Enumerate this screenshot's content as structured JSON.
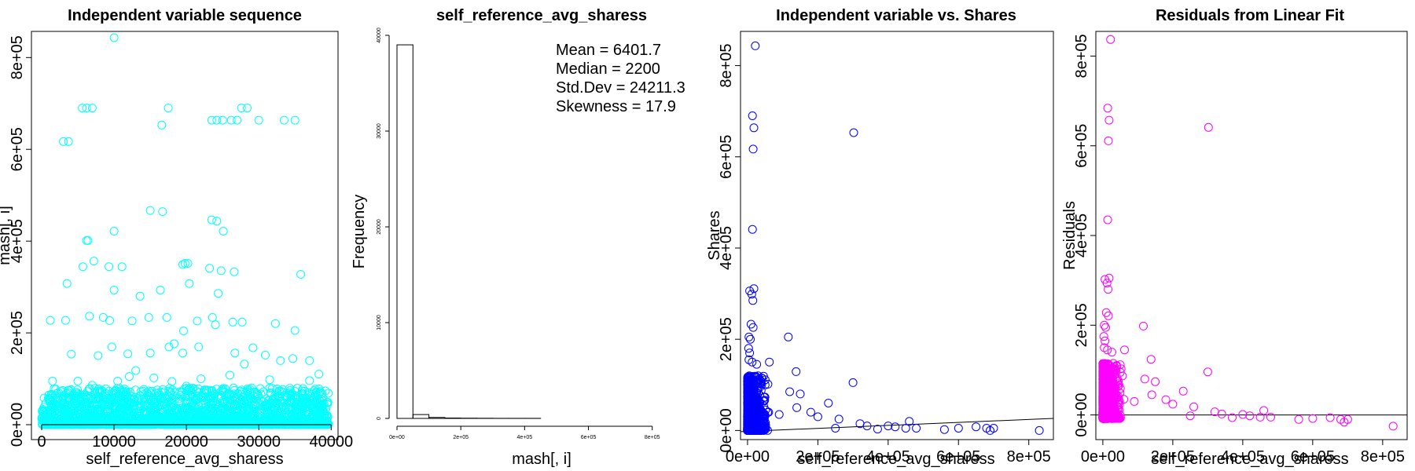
{
  "chart_data": [
    {
      "type": "scatter",
      "title": "Independent variable sequence",
      "xlabel": "self_reference_avg_sharess",
      "ylabel": "mash[, i]",
      "xlim": [
        0,
        39644
      ],
      "ylim": [
        0,
        843300
      ],
      "xticks": [
        0,
        10000,
        20000,
        30000,
        40000
      ],
      "xtick_labels": [
        "0",
        "10000",
        "20000",
        "30000",
        "40000"
      ],
      "yticks": [
        0,
        200000,
        400000,
        600000,
        800000
      ],
      "ytick_labels": [
        "0e+00",
        "2e+05",
        "4e+05",
        "6e+05",
        "8e+05"
      ],
      "marker": "open circle",
      "color": "#00FFFF",
      "points": [
        [
          10000,
          843300
        ],
        [
          3000,
          617000
        ],
        [
          3700,
          617000
        ],
        [
          5600,
          690000
        ],
        [
          6200,
          690000
        ],
        [
          7000,
          690000
        ],
        [
          17500,
          690000
        ],
        [
          23500,
          663600
        ],
        [
          24200,
          663600
        ],
        [
          25000,
          663600
        ],
        [
          26200,
          663600
        ],
        [
          27000,
          663600
        ],
        [
          27600,
          690000
        ],
        [
          28400,
          690000
        ],
        [
          30000,
          663600
        ],
        [
          33500,
          663600
        ],
        [
          35000,
          663600
        ],
        [
          16600,
          652900
        ],
        [
          15000,
          466800
        ],
        [
          16700,
          464300
        ],
        [
          23500,
          446200
        ],
        [
          24200,
          443800
        ],
        [
          25100,
          421600
        ],
        [
          10000,
          421600
        ],
        [
          6200,
          401300
        ],
        [
          6400,
          401300
        ],
        [
          5700,
          344400
        ],
        [
          7200,
          356500
        ],
        [
          9300,
          344400
        ],
        [
          11100,
          344400
        ],
        [
          19500,
          349100
        ],
        [
          19800,
          351600
        ],
        [
          20200,
          351600
        ],
        [
          23200,
          340700
        ],
        [
          24800,
          335500
        ],
        [
          26600,
          333200
        ],
        [
          35800,
          327500
        ],
        [
          3500,
          307600
        ],
        [
          10000,
          293300
        ],
        [
          13600,
          280000
        ],
        [
          16400,
          293300
        ],
        [
          20400,
          307600
        ],
        [
          24400,
          286100
        ],
        [
          1200,
          227300
        ],
        [
          3300,
          227300
        ],
        [
          6600,
          236400
        ],
        [
          8500,
          233600
        ],
        [
          9400,
          226900
        ],
        [
          12500,
          226100
        ],
        [
          14800,
          233600
        ],
        [
          17300,
          233600
        ],
        [
          19600,
          204400
        ],
        [
          21500,
          226000
        ],
        [
          23600,
          233600
        ],
        [
          24000,
          217700
        ],
        [
          26400,
          223600
        ],
        [
          27700,
          223600
        ],
        [
          32300,
          220400
        ],
        [
          35000,
          205200
        ],
        [
          4100,
          153700
        ],
        [
          7800,
          150600
        ],
        [
          9700,
          169600
        ],
        [
          11900,
          154500
        ],
        [
          15000,
          156200
        ],
        [
          17600,
          169600
        ],
        [
          18300,
          176300
        ],
        [
          19500,
          156200
        ],
        [
          21700,
          169600
        ],
        [
          26700,
          156200
        ],
        [
          29200,
          167600
        ],
        [
          30900,
          151500
        ],
        [
          34700,
          144100
        ],
        [
          38300,
          110200
        ],
        [
          1500,
          95000
        ],
        [
          5000,
          95000
        ],
        [
          10500,
          95000
        ],
        [
          12100,
          105000
        ],
        [
          15500,
          102000
        ],
        [
          18000,
          94000
        ],
        [
          22000,
          100000
        ],
        [
          26000,
          108000
        ],
        [
          31500,
          98000
        ],
        [
          37000,
          96000
        ],
        [
          33000,
          139600
        ],
        [
          37000,
          139600
        ],
        [
          28000,
          132000
        ],
        [
          13000,
          118000
        ],
        [
          7000,
          86000
        ],
        [
          20000,
          84000
        ]
      ],
      "dense_band": {
        "x": [
          0,
          39644
        ],
        "y": [
          0,
          80000
        ]
      }
    },
    {
      "type": "histogram",
      "title": "self_reference_avg_sharess",
      "xlabel": "mash[, i]",
      "ylabel": "Frequency",
      "bin_width": 50000,
      "bin_starts": [
        0,
        50000,
        100000,
        150000,
        200000,
        250000,
        300000,
        350000,
        400000,
        450000,
        500000,
        550000,
        600000,
        650000,
        700000,
        750000,
        800000
      ],
      "counts": [
        39011,
        405,
        102,
        40,
        25,
        13,
        10,
        8,
        5,
        4,
        3,
        2,
        4,
        3,
        3,
        1,
        1
      ],
      "xlim": [
        0,
        850000
      ],
      "ylim": [
        0,
        40000
      ],
      "xticks": [
        0,
        200000,
        400000,
        600000,
        800000
      ],
      "xtick_labels": [
        "0e+00",
        "2e+05",
        "4e+05",
        "6e+05",
        "8e+05"
      ],
      "yticks": [
        0,
        10000,
        20000,
        30000,
        40000
      ],
      "ytick_labels": [
        "0",
        "10000",
        "20000",
        "30000",
        "40000"
      ],
      "annotations": [
        "Mean = 6401.7",
        "Median = 2200",
        "Std.Dev = 24211.3",
        "Skewness = 17.9"
      ]
    },
    {
      "type": "scatter",
      "title": "Independent variable vs. Shares",
      "xlabel": "self_reference_avg_sharess",
      "ylabel": "Shares",
      "xlim": [
        -20000,
        870000
      ],
      "ylim": [
        -20000,
        875000
      ],
      "xticks": [
        0,
        200000,
        400000,
        600000,
        800000
      ],
      "xtick_labels": [
        "0e+00",
        "2e+05",
        "4e+05",
        "6e+05",
        "8e+05"
      ],
      "yticks": [
        0,
        200000,
        400000,
        600000,
        800000
      ],
      "ytick_labels": [
        "0e+00",
        "2e+05",
        "4e+05",
        "6e+05",
        "8e+05"
      ],
      "marker": "open circle",
      "color": "#0000FF",
      "fit_line": {
        "x": [
          -20000,
          870000
        ],
        "y": [
          -2500,
          26500
        ]
      },
      "points": [
        [
          22000,
          843300
        ],
        [
          14000,
          690000
        ],
        [
          18000,
          663600
        ],
        [
          16000,
          617000
        ],
        [
          302000,
          652900
        ],
        [
          14000,
          441000
        ],
        [
          6000,
          306000
        ],
        [
          12000,
          299000
        ],
        [
          18000,
          311000
        ],
        [
          15000,
          285000
        ],
        [
          10000,
          233000
        ],
        [
          16000,
          226000
        ],
        [
          4000,
          205000
        ],
        [
          8000,
          200000
        ],
        [
          116000,
          205000
        ],
        [
          3000,
          180000
        ],
        [
          6000,
          170000
        ],
        [
          4000,
          155000
        ],
        [
          13000,
          150000
        ],
        [
          26000,
          145000
        ],
        [
          62000,
          150000
        ],
        [
          138000,
          129000
        ],
        [
          300000,
          105000
        ],
        [
          5000,
          120000
        ],
        [
          9000,
          110000
        ],
        [
          30000,
          120000
        ],
        [
          50000,
          100000
        ],
        [
          120000,
          85000
        ],
        [
          150000,
          80000
        ],
        [
          230000,
          60000
        ],
        [
          140000,
          50000
        ],
        [
          60000,
          40000
        ],
        [
          90000,
          35000
        ],
        [
          180000,
          40000
        ],
        [
          200000,
          30000
        ],
        [
          260000,
          25000
        ],
        [
          320000,
          15000
        ],
        [
          340000,
          10000
        ],
        [
          400000,
          10000
        ],
        [
          450000,
          5000
        ],
        [
          460000,
          20000
        ],
        [
          420000,
          8000
        ],
        [
          480000,
          5000
        ],
        [
          600000,
          5000
        ],
        [
          650000,
          8000
        ],
        [
          680000,
          5000
        ],
        [
          700000,
          5000
        ],
        [
          690000,
          0
        ],
        [
          830000,
          0
        ],
        [
          560000,
          2000
        ],
        [
          370000,
          3000
        ],
        [
          250000,
          5000
        ]
      ],
      "dense_band": {
        "x": [
          0,
          60000
        ],
        "y": [
          0,
          120000
        ]
      }
    },
    {
      "type": "scatter",
      "title": "Residuals from Linear Fit",
      "xlabel": "self_reference_avg_sharess",
      "ylabel": "Residuals",
      "xlim": [
        -20000,
        870000
      ],
      "ylim": [
        -55000,
        855000
      ],
      "xticks": [
        0,
        200000,
        400000,
        600000,
        800000
      ],
      "xtick_labels": [
        "0e+00",
        "2e+05",
        "4e+05",
        "6e+05",
        "8e+05"
      ],
      "yticks": [
        0,
        200000,
        400000,
        600000,
        800000
      ],
      "ytick_labels": [
        "0e+00",
        "2e+05",
        "4e+05",
        "6e+05",
        "8e+05"
      ],
      "marker": "open circle",
      "color": "#FF00FF",
      "zero_line": 0,
      "points": [
        [
          22000,
          837000
        ],
        [
          14000,
          684000
        ],
        [
          18000,
          657000
        ],
        [
          16000,
          611000
        ],
        [
          302000,
          641000
        ],
        [
          14000,
          435000
        ],
        [
          6000,
          302000
        ],
        [
          12000,
          294000
        ],
        [
          18000,
          305000
        ],
        [
          15000,
          280000
        ],
        [
          10000,
          228000
        ],
        [
          16000,
          221000
        ],
        [
          4000,
          200000
        ],
        [
          8000,
          195000
        ],
        [
          116000,
          198000
        ],
        [
          3000,
          175000
        ],
        [
          6000,
          165000
        ],
        [
          4000,
          150000
        ],
        [
          13000,
          145000
        ],
        [
          26000,
          140000
        ],
        [
          62000,
          145000
        ],
        [
          138000,
          124000
        ],
        [
          300000,
          96000
        ],
        [
          5000,
          115000
        ],
        [
          9000,
          105000
        ],
        [
          30000,
          115000
        ],
        [
          50000,
          95000
        ],
        [
          120000,
          80000
        ],
        [
          150000,
          74000
        ],
        [
          230000,
          53000
        ],
        [
          140000,
          45000
        ],
        [
          60000,
          35000
        ],
        [
          90000,
          30000
        ],
        [
          180000,
          34000
        ],
        [
          200000,
          24000
        ],
        [
          260000,
          18000
        ],
        [
          320000,
          7000
        ],
        [
          340000,
          2000
        ],
        [
          400000,
          1000
        ],
        [
          450000,
          -5000
        ],
        [
          460000,
          10000
        ],
        [
          420000,
          -2000
        ],
        [
          480000,
          -5000
        ],
        [
          600000,
          -8000
        ],
        [
          650000,
          -6000
        ],
        [
          680000,
          -10000
        ],
        [
          700000,
          -10000
        ],
        [
          690000,
          -16000
        ],
        [
          830000,
          -25000
        ],
        [
          560000,
          -10000
        ],
        [
          370000,
          -6000
        ],
        [
          250000,
          -2000
        ]
      ],
      "dense_band": {
        "x": [
          0,
          60000
        ],
        "y": [
          -8000,
          115000
        ]
      }
    }
  ]
}
